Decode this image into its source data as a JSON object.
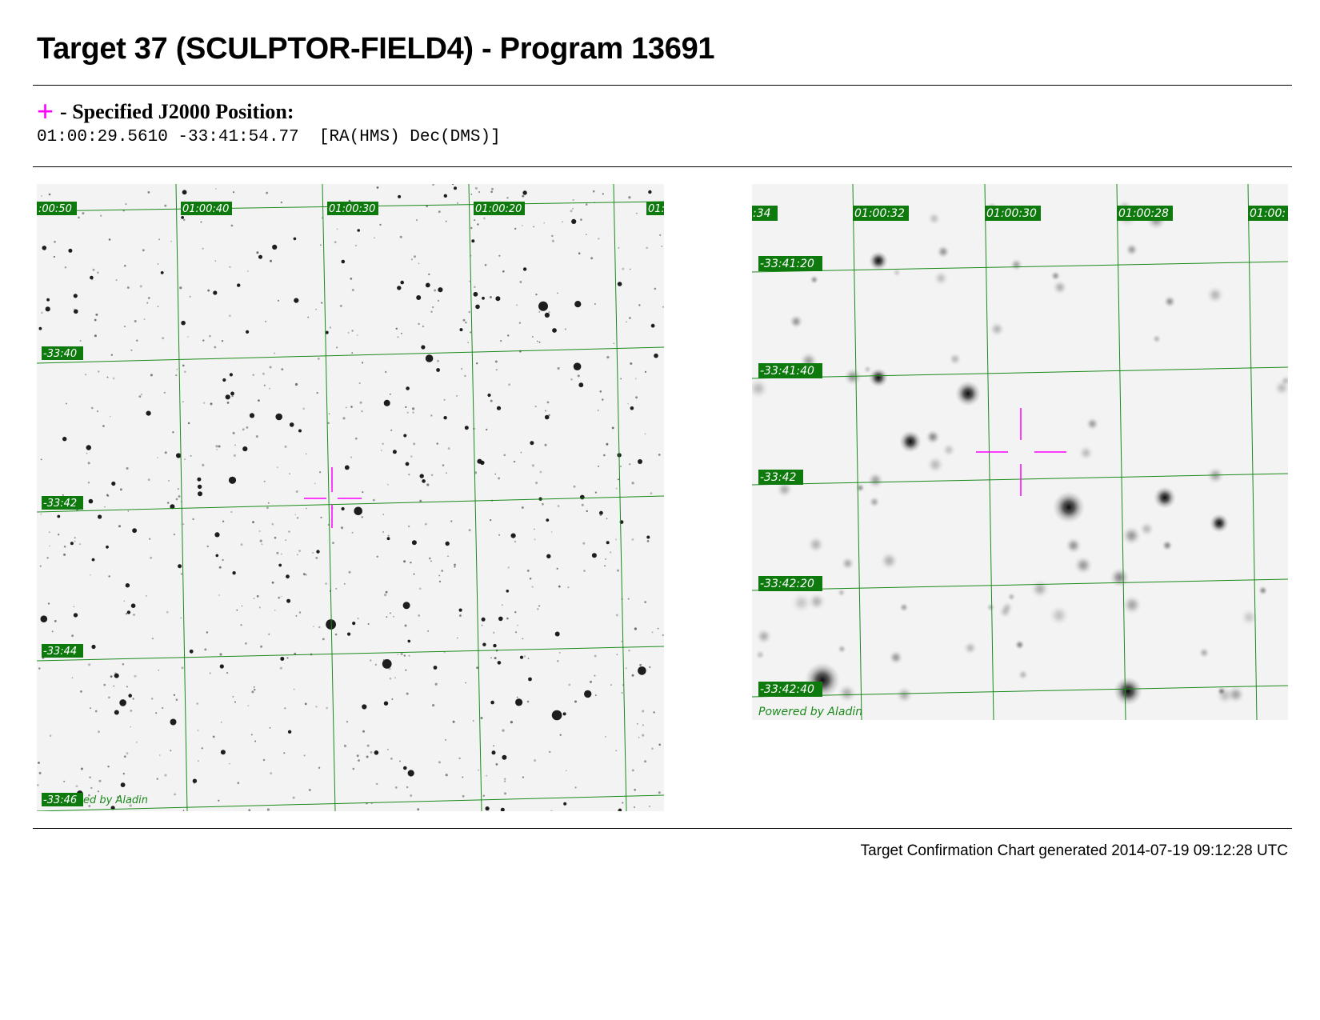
{
  "header": {
    "title": "Target 37 (SCULPTOR-FIELD4) - Program 13691"
  },
  "position": {
    "marker_icon": "magenta-cross-icon",
    "marker_color": "#ff00ff",
    "heading": "- Specified J2000 Position:",
    "coords": "01:00:29.5610 -33:41:54.77  [RA(HMS) Dec(DMS)]"
  },
  "wide_field": {
    "ra_labels": [
      ":00:50",
      "01:00:40",
      "01:00:30",
      "01:00:20",
      "01:"
    ],
    "dec_labels": [
      "-33:40",
      "-33:42",
      "-33:44",
      "-33:46"
    ],
    "credit": "ed by Aladin",
    "grid_color": "#1a8a1a",
    "label_bg": "#0e7a0e"
  },
  "zoom_field": {
    "ra_labels": [
      ":34",
      "01:00:32",
      "01:00:30",
      "01:00:28",
      "01:00:"
    ],
    "dec_labels": [
      "-33:41:20",
      "-33:41:40",
      "-33:42",
      "-33:42:20",
      "-33:42:40"
    ],
    "credit": "Powered by Aladin"
  },
  "footer": {
    "generated": "Target Confirmation Chart generated 2014-07-19 09:12:28 UTC"
  }
}
